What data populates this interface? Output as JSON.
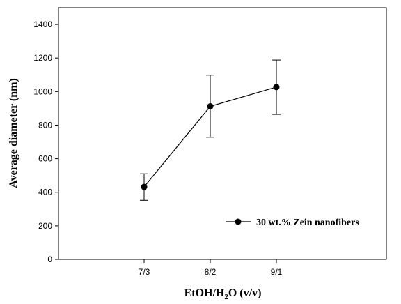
{
  "chart_data": {
    "type": "line",
    "x_labels": [
      "7/3",
      "8/2",
      "9/1"
    ],
    "y_ticks": [
      0,
      200,
      400,
      600,
      800,
      1000,
      1200,
      1400
    ],
    "ylim": [
      0,
      1500
    ],
    "xlabel": {
      "pre": "EtOH/H",
      "sub": "2",
      "post": "O (v/v)"
    },
    "ylabel": "Average diameter (nm)",
    "legend_position": "lower-right",
    "series": [
      {
        "name": "30 wt.% Zein nanofibers",
        "color": "#000000",
        "marker": "filled-circle",
        "points": [
          {
            "x": "7/3",
            "y": 432,
            "err_low": 352,
            "err_high": 510
          },
          {
            "x": "8/2",
            "y": 912,
            "err_low": 728,
            "err_high": 1098
          },
          {
            "x": "9/1",
            "y": 1027,
            "err_low": 864,
            "err_high": 1188
          }
        ]
      }
    ]
  }
}
